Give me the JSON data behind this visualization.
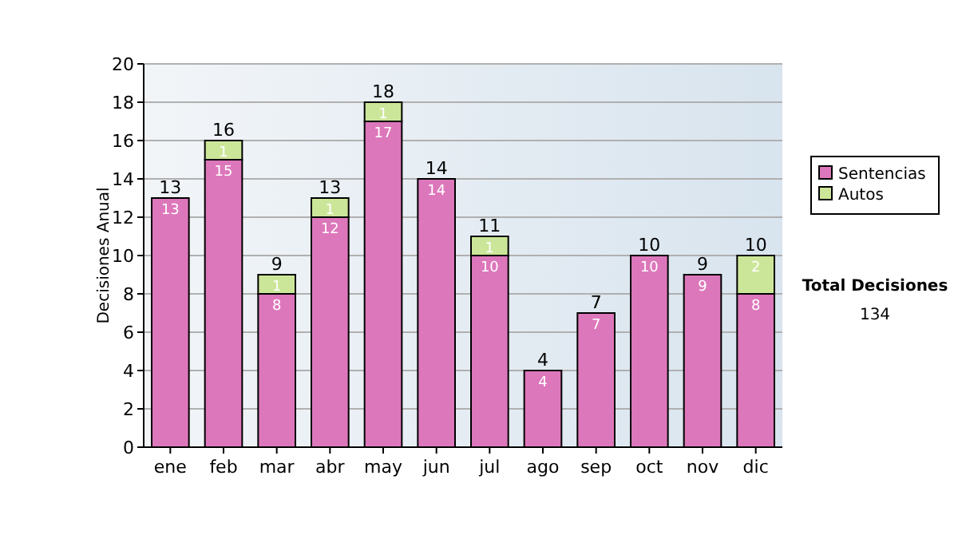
{
  "chart_data": {
    "type": "bar",
    "stacked": true,
    "ylabel": "Decisiones Anual",
    "categories": [
      "ene",
      "feb",
      "mar",
      "abr",
      "may",
      "jun",
      "jul",
      "ago",
      "sep",
      "oct",
      "nov",
      "dic"
    ],
    "series": [
      {
        "name": "Sentencias",
        "color": "#dd77bb",
        "values": [
          13,
          15,
          8,
          12,
          17,
          14,
          10,
          4,
          7,
          10,
          9,
          8
        ]
      },
      {
        "name": "Autos",
        "color": "#cce699",
        "values": [
          null,
          1,
          1,
          1,
          1,
          null,
          1,
          null,
          null,
          null,
          null,
          2
        ]
      }
    ],
    "totals": [
      "13",
      "16",
      "9",
      "13",
      "18",
      "14",
      "11",
      "4",
      "7",
      "10",
      "9",
      "10"
    ],
    "data_labels": true,
    "ylim": [
      0,
      20
    ],
    "yticks": [
      0,
      2,
      4,
      6,
      8,
      10,
      12,
      14,
      16,
      18,
      20
    ],
    "grid": "y",
    "legend": "right",
    "annotations": [
      "Total Decisiones",
      "134"
    ]
  }
}
